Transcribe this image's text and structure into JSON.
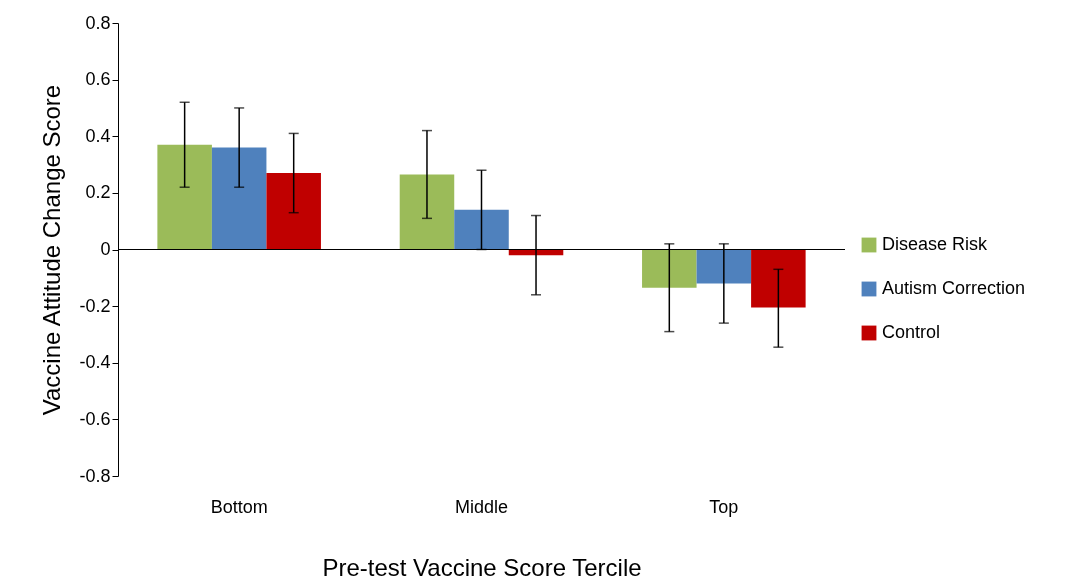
{
  "chart_data": {
    "type": "bar",
    "xlabel": "Pre-test Vaccine Score Tercile",
    "ylabel": "Vaccine Attitude Change Score",
    "categories": [
      "Bottom",
      "Middle",
      "Top"
    ],
    "series": [
      {
        "name": "Disease Risk",
        "color": "#9bbb59",
        "values": [
          0.37,
          0.265,
          -0.135
        ],
        "errors": [
          [
            0.22,
            0.52
          ],
          [
            0.11,
            0.42
          ],
          [
            -0.29,
            0.02
          ]
        ]
      },
      {
        "name": "Autism Correction",
        "color": "#4f81bd",
        "values": [
          0.36,
          0.14,
          -0.12
        ],
        "errors": [
          [
            0.22,
            0.5
          ],
          [
            0.0,
            0.28
          ],
          [
            -0.26,
            0.02
          ]
        ]
      },
      {
        "name": "Control",
        "color": "#c00000",
        "values": [
          0.27,
          -0.02,
          -0.205
        ],
        "errors": [
          [
            0.13,
            0.41
          ],
          [
            -0.16,
            0.12
          ],
          [
            -0.345,
            -0.07
          ]
        ]
      }
    ],
    "ylim": [
      -0.8,
      0.8
    ],
    "yticks": [
      -0.8,
      -0.6,
      -0.4,
      -0.2,
      0,
      0.2,
      0.4,
      0.6,
      0.8
    ],
    "ref_lines": [
      {
        "axis": "y",
        "value": 0,
        "color": "#000000"
      }
    ],
    "legend": "right"
  }
}
